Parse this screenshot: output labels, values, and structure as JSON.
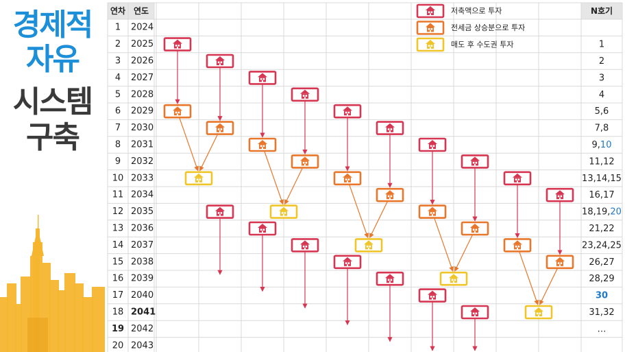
{
  "title_lines": [
    {
      "text": "경제적",
      "color": "#1d8fd8"
    },
    {
      "text": "자유",
      "color": "#1d8fd8"
    },
    {
      "text": "시스템",
      "color": "#3a3a3a"
    },
    {
      "text": "구축",
      "color": "#3a3a3a"
    }
  ],
  "columns": {
    "year_index": "연차",
    "year": "연도",
    "house_no": "N호기"
  },
  "legend": [
    {
      "label": "저축액으로 투자",
      "color": "#d63651"
    },
    {
      "label": "전세금 상승분으로 투자",
      "color": "#e8772b"
    },
    {
      "label": "매도 후 수도권 투자",
      "color": "#f0c52a"
    }
  ],
  "rows": [
    {
      "n": "1",
      "year": "2024",
      "house": "",
      "blue": ""
    },
    {
      "n": "2",
      "year": "2025",
      "house": "1",
      "blue": ""
    },
    {
      "n": "3",
      "year": "2026",
      "house": "2",
      "blue": ""
    },
    {
      "n": "4",
      "year": "2027",
      "house": "3",
      "blue": ""
    },
    {
      "n": "5",
      "year": "2028",
      "house": "4",
      "blue": ""
    },
    {
      "n": "6",
      "year": "2029",
      "house": "5,6",
      "blue": ""
    },
    {
      "n": "7",
      "year": "2030",
      "house": "7,8",
      "blue": ""
    },
    {
      "n": "8",
      "year": "2031",
      "house": "9,",
      "blue": "10"
    },
    {
      "n": "9",
      "year": "2032",
      "house": "11,12",
      "blue": ""
    },
    {
      "n": "10",
      "year": "2033",
      "house": "13,14,15",
      "blue": ""
    },
    {
      "n": "11",
      "year": "2034",
      "house": "16,17",
      "blue": ""
    },
    {
      "n": "12",
      "year": "2035",
      "house": "18,19,",
      "blue": "20"
    },
    {
      "n": "13",
      "year": "2036",
      "house": "21,22",
      "blue": ""
    },
    {
      "n": "14",
      "year": "2037",
      "house": "23,24,25",
      "blue": ""
    },
    {
      "n": "15",
      "year": "2038",
      "house": "26,27",
      "blue": ""
    },
    {
      "n": "16",
      "year": "2039",
      "house": "28,29",
      "blue": ""
    },
    {
      "n": "17",
      "year": "2040",
      "house": "",
      "blue": "30"
    },
    {
      "n": "18",
      "year": "2041",
      "house": "31,32",
      "blue": "",
      "bold_year": true
    },
    {
      "n": "19",
      "year": "2042",
      "house": "…",
      "blue": "",
      "bold_n": true
    },
    {
      "n": "20",
      "year": "2043",
      "house": "",
      "blue": ""
    }
  ],
  "colors": {
    "savings": "#d63651",
    "jeonse": "#e8772b",
    "sell": "#f0c52a",
    "blue": "#1f78c8",
    "grid": "#d9d9d9",
    "header_bg": "#e6e6e6",
    "skyline": "#f5b52e"
  },
  "houses": [
    {
      "type": "savings",
      "col": 0,
      "row": 1
    },
    {
      "type": "savings",
      "col": 1,
      "row": 2
    },
    {
      "type": "savings",
      "col": 2,
      "row": 3
    },
    {
      "type": "savings",
      "col": 3,
      "row": 4
    },
    {
      "type": "savings",
      "col": 4,
      "row": 5
    },
    {
      "type": "savings",
      "col": 5,
      "row": 6
    },
    {
      "type": "savings",
      "col": 6,
      "row": 7
    },
    {
      "type": "savings",
      "col": 7,
      "row": 8
    },
    {
      "type": "savings",
      "col": 8,
      "row": 9
    },
    {
      "type": "savings",
      "col": 9,
      "row": 10
    },
    {
      "type": "jeonse",
      "col": 0,
      "row": 5
    },
    {
      "type": "jeonse",
      "col": 1,
      "row": 6
    },
    {
      "type": "jeonse",
      "col": 2,
      "row": 7
    },
    {
      "type": "jeonse",
      "col": 3,
      "row": 8
    },
    {
      "type": "jeonse",
      "col": 4,
      "row": 9
    },
    {
      "type": "jeonse",
      "col": 5,
      "row": 10
    },
    {
      "type": "jeonse",
      "col": 6,
      "row": 11
    },
    {
      "type": "jeonse",
      "col": 7,
      "row": 12
    },
    {
      "type": "jeonse",
      "col": 8,
      "row": 13
    },
    {
      "type": "jeonse",
      "col": 9,
      "row": 14
    },
    {
      "type": "sell",
      "col": 0.5,
      "row": 9
    },
    {
      "type": "sell",
      "col": 2.5,
      "row": 11
    },
    {
      "type": "sell",
      "col": 4.5,
      "row": 13
    },
    {
      "type": "sell",
      "col": 6.5,
      "row": 15
    },
    {
      "type": "sell",
      "col": 8.5,
      "row": 17
    },
    {
      "type": "savings",
      "col": 1,
      "row": 11
    },
    {
      "type": "savings",
      "col": 2,
      "row": 12
    },
    {
      "type": "savings",
      "col": 3,
      "row": 13
    },
    {
      "type": "savings",
      "col": 4,
      "row": 14
    },
    {
      "type": "savings",
      "col": 5,
      "row": 15
    },
    {
      "type": "savings",
      "col": 6,
      "row": 16
    },
    {
      "type": "savings",
      "col": 7,
      "row": 17
    }
  ],
  "arrows": [
    {
      "from": [
        0,
        1
      ],
      "to": [
        0,
        5
      ]
    },
    {
      "from": [
        1,
        2
      ],
      "to": [
        1,
        6
      ]
    },
    {
      "from": [
        2,
        3
      ],
      "to": [
        2,
        7
      ]
    },
    {
      "from": [
        3,
        4
      ],
      "to": [
        3,
        8
      ]
    },
    {
      "from": [
        4,
        5
      ],
      "to": [
        4,
        9
      ]
    },
    {
      "from": [
        5,
        6
      ],
      "to": [
        5,
        10
      ]
    },
    {
      "from": [
        6,
        7
      ],
      "to": [
        6,
        11
      ]
    },
    {
      "from": [
        7,
        8
      ],
      "to": [
        7,
        12
      ]
    },
    {
      "from": [
        8,
        9
      ],
      "to": [
        8,
        13
      ]
    },
    {
      "from": [
        9,
        10
      ],
      "to": [
        9,
        14
      ]
    },
    {
      "from": [
        0,
        5
      ],
      "to": [
        0.5,
        9
      ],
      "diag": true
    },
    {
      "from": [
        1,
        6
      ],
      "to": [
        0.5,
        9
      ],
      "diag": true
    },
    {
      "from": [
        2,
        7
      ],
      "to": [
        2.5,
        11
      ],
      "diag": true
    },
    {
      "from": [
        3,
        8
      ],
      "to": [
        2.5,
        11
      ],
      "diag": true
    },
    {
      "from": [
        4,
        9
      ],
      "to": [
        4.5,
        13
      ],
      "diag": true
    },
    {
      "from": [
        5,
        10
      ],
      "to": [
        4.5,
        13
      ],
      "diag": true
    },
    {
      "from": [
        6,
        11
      ],
      "to": [
        6.5,
        15
      ],
      "diag": true
    },
    {
      "from": [
        7,
        12
      ],
      "to": [
        6.5,
        15
      ],
      "diag": true
    },
    {
      "from": [
        8,
        13
      ],
      "to": [
        8.5,
        17
      ],
      "diag": true
    },
    {
      "from": [
        9,
        14
      ],
      "to": [
        8.5,
        17
      ],
      "diag": true
    },
    {
      "from": [
        1,
        11
      ],
      "to": [
        1,
        15.2
      ]
    },
    {
      "from": [
        2,
        12
      ],
      "to": [
        2,
        16.2
      ]
    },
    {
      "from": [
        3,
        13
      ],
      "to": [
        3,
        17.2
      ]
    },
    {
      "from": [
        4,
        14
      ],
      "to": [
        4,
        18.2
      ]
    },
    {
      "from": [
        5,
        15
      ],
      "to": [
        5,
        19.2
      ]
    },
    {
      "from": [
        6,
        16
      ],
      "to": [
        6,
        20.1
      ]
    },
    {
      "from": [
        7,
        17
      ],
      "to": [
        7,
        20.5
      ]
    }
  ]
}
